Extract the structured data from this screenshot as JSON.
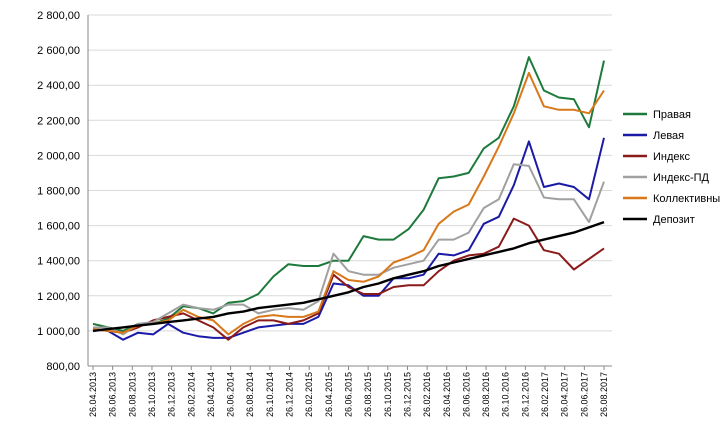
{
  "chart_data": {
    "type": "line",
    "title": "",
    "xlabel": "",
    "ylabel": "",
    "ylim": [
      800,
      2800
    ],
    "y_ticks": [
      "800,00",
      "1 000,00",
      "1 200,00",
      "1 400,00",
      "1 600,00",
      "1 800,00",
      "2 000,00",
      "2 200,00",
      "2 400,00",
      "2 600,00",
      "2 800,00"
    ],
    "x_tick_labels": [
      "26.04.2013",
      "26.06.2013",
      "26.08.2013",
      "26.10.2013",
      "26.12.2013",
      "26.02.2014",
      "26.04.2014",
      "26.06.2014",
      "26.08.2014",
      "26.10.2014",
      "26.12.2014",
      "26.02.2015",
      "26.04.2015",
      "26.06.2015",
      "26.08.2015",
      "26.10.2015",
      "26.12.2015",
      "26.02.2016",
      "26.04.2016",
      "26.06.2016",
      "26.08.2016",
      "26.10.2016",
      "26.12.2016",
      "26.02.2017",
      "26.04.2017",
      "26.06.2017",
      "26.08.2017"
    ],
    "grid": true,
    "legend_position": "right",
    "series": [
      {
        "name": "Правая",
        "color": "#1e7a3c",
        "values": [
          1040,
          1020,
          1000,
          1040,
          1040,
          1070,
          1140,
          1130,
          1100,
          1160,
          1170,
          1210,
          1310,
          1380,
          1370,
          1370,
          1400,
          1400,
          1540,
          1520,
          1520,
          1580,
          1690,
          1870,
          1880,
          1900,
          2040,
          2100,
          2280,
          2560,
          2370,
          2330,
          2320,
          2160,
          2540
        ]
      },
      {
        "name": "Левая",
        "color": "#1a1aa6",
        "values": [
          1010,
          1000,
          950,
          990,
          980,
          1040,
          990,
          970,
          960,
          960,
          990,
          1020,
          1030,
          1040,
          1040,
          1080,
          1270,
          1260,
          1200,
          1200,
          1300,
          1300,
          1320,
          1440,
          1430,
          1460,
          1610,
          1650,
          1830,
          2080,
          1820,
          1840,
          1820,
          1750,
          2100
        ]
      },
      {
        "name": "Индекс",
        "color": "#8b1a1a",
        "values": [
          1010,
          1000,
          990,
          1020,
          1060,
          1080,
          1100,
          1060,
          1020,
          950,
          1020,
          1060,
          1060,
          1040,
          1060,
          1100,
          1320,
          1250,
          1210,
          1210,
          1250,
          1260,
          1260,
          1340,
          1400,
          1430,
          1440,
          1480,
          1640,
          1600,
          1460,
          1440,
          1350,
          1410,
          1470
        ]
      },
      {
        "name": "Индекс-ПД",
        "color": "#a0a0a0",
        "values": [
          1020,
          1020,
          980,
          1040,
          1050,
          1100,
          1150,
          1130,
          1120,
          1150,
          1150,
          1100,
          1120,
          1130,
          1120,
          1170,
          1440,
          1340,
          1320,
          1320,
          1360,
          1380,
          1400,
          1520,
          1520,
          1560,
          1700,
          1750,
          1950,
          1940,
          1760,
          1750,
          1750,
          1620,
          1850
        ]
      },
      {
        "name": "Коллективный",
        "color": "#d9781a",
        "values": [
          1010,
          1000,
          990,
          1030,
          1040,
          1060,
          1120,
          1080,
          1060,
          980,
          1040,
          1080,
          1090,
          1080,
          1080,
          1110,
          1340,
          1290,
          1280,
          1310,
          1390,
          1420,
          1460,
          1610,
          1680,
          1720,
          1880,
          2050,
          2240,
          2470,
          2280,
          2260,
          2260,
          2240,
          2370
        ]
      },
      {
        "name": "Депозит",
        "color": "#000000",
        "values": [
          1000,
          1010,
          1020,
          1030,
          1040,
          1050,
          1060,
          1070,
          1080,
          1100,
          1110,
          1130,
          1140,
          1150,
          1160,
          1180,
          1200,
          1220,
          1250,
          1270,
          1300,
          1320,
          1340,
          1370,
          1390,
          1410,
          1430,
          1450,
          1470,
          1500,
          1520,
          1540,
          1560,
          1590,
          1620
        ]
      }
    ]
  }
}
